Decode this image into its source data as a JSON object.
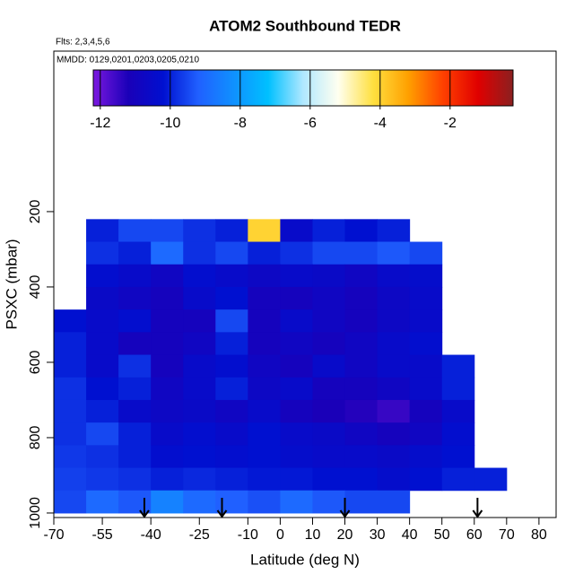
{
  "chart_data": {
    "type": "heatmap",
    "title": "ATOM2 Southbound TEDR",
    "subtitle": "Flts: 2,3,4,5,6",
    "annotation": "MMDD: 0129,0201,0203,0205,0210",
    "x_label": "Latitude (deg N)",
    "y_label": "PSXC (mbar)",
    "xlim": [
      -70,
      85.3
    ],
    "ylim": [
      1012,
      -226
    ],
    "xticks": [
      -70,
      -55,
      -40,
      -25,
      -10,
      0,
      10,
      20,
      30,
      40,
      50,
      60,
      70,
      80
    ],
    "yticks": [
      200,
      400,
      600,
      800,
      1000
    ],
    "x_edges": [
      -70,
      -60,
      -50,
      -40,
      -30,
      -20,
      -10,
      0,
      10,
      20,
      30,
      40,
      50,
      60,
      70
    ],
    "y_edges": [
      220,
      280,
      340,
      400,
      460,
      520,
      580,
      640,
      700,
      760,
      820,
      880,
      940,
      1000
    ],
    "z": [
      [
        null,
        -10,
        -9.5,
        -9.5,
        -9.8,
        -10,
        -4,
        -10.5,
        -10,
        -10.2,
        -10,
        null,
        null,
        null
      ],
      [
        null,
        -9.8,
        -10,
        -9,
        -9.8,
        -9.5,
        -10,
        -9.8,
        -9.5,
        -9.5,
        -9.3,
        -9.5,
        null,
        null
      ],
      [
        null,
        -10.3,
        -10.5,
        -10.8,
        -10.3,
        -10.5,
        -10.7,
        -10.5,
        -10.6,
        -10.8,
        -10.5,
        -10.4,
        null,
        null
      ],
      [
        null,
        -10.6,
        -10.8,
        -11,
        -10.5,
        -10.2,
        -11,
        -11,
        -10.8,
        -11,
        -10.7,
        -10.5,
        null,
        null
      ],
      [
        -10.2,
        -10.5,
        -10.3,
        -11,
        -11,
        -9.5,
        -11,
        -10.5,
        -10.8,
        -11,
        -10.7,
        -10.5,
        null,
        null
      ],
      [
        -10,
        -10.5,
        -11,
        -11,
        -10.8,
        -10,
        -11,
        -10.8,
        -11,
        -10.8,
        -10.5,
        -10.3,
        null,
        null
      ],
      [
        -10,
        -10.5,
        -9.8,
        -11,
        -10.5,
        -10.3,
        -10.8,
        -11,
        -10.5,
        -10.8,
        -10.5,
        -10.5,
        -10,
        null
      ],
      [
        -9.8,
        -10.2,
        -10,
        -10.8,
        -10.5,
        -10,
        -10.7,
        -10.5,
        -11,
        -11,
        -10.8,
        -10.5,
        -10,
        null
      ],
      [
        -9.8,
        -10,
        -10.5,
        -10.7,
        -10.6,
        -10.8,
        -10.5,
        -11,
        -11.2,
        -11.3,
        -11.5,
        -11,
        -10.5,
        null
      ],
      [
        -9.8,
        -9.5,
        -10,
        -10.5,
        -10.3,
        -10.5,
        -10.2,
        -10.5,
        -10.6,
        -10.8,
        -11,
        -10.8,
        -10.3,
        null
      ],
      [
        -9.7,
        -9.8,
        -10,
        -10.3,
        -10.2,
        -10.3,
        -10.2,
        -10.4,
        -10.5,
        -10.5,
        -10.6,
        -10.4,
        -10.2,
        null
      ],
      [
        -9.6,
        -9.7,
        -9.8,
        -10,
        -9.9,
        -10,
        -10.1,
        -10.1,
        -10.2,
        -10.2,
        -10.4,
        -10.2,
        -10,
        -10
      ],
      [
        -9.5,
        -9,
        -9.3,
        -8.5,
        -9,
        -9.2,
        -9.4,
        -9,
        -9.3,
        -9.5,
        -9.5,
        null,
        null,
        null
      ]
    ],
    "colorbar": {
      "clim": [
        -12.2,
        -0.2
      ],
      "ticks": [
        -12,
        -10,
        -8,
        -6,
        -4,
        -2
      ],
      "colors": [
        "#7b18e0",
        "#1a00b8",
        "#0010d0",
        "#2060ff",
        "#1090ff",
        "#00c0ff",
        "#b0e8ff",
        "#fffff0",
        "#ffe040",
        "#ffa000",
        "#ff4000",
        "#e00000",
        "#8b2020"
      ]
    },
    "arrows": [
      -42,
      -18,
      20,
      61
    ]
  }
}
